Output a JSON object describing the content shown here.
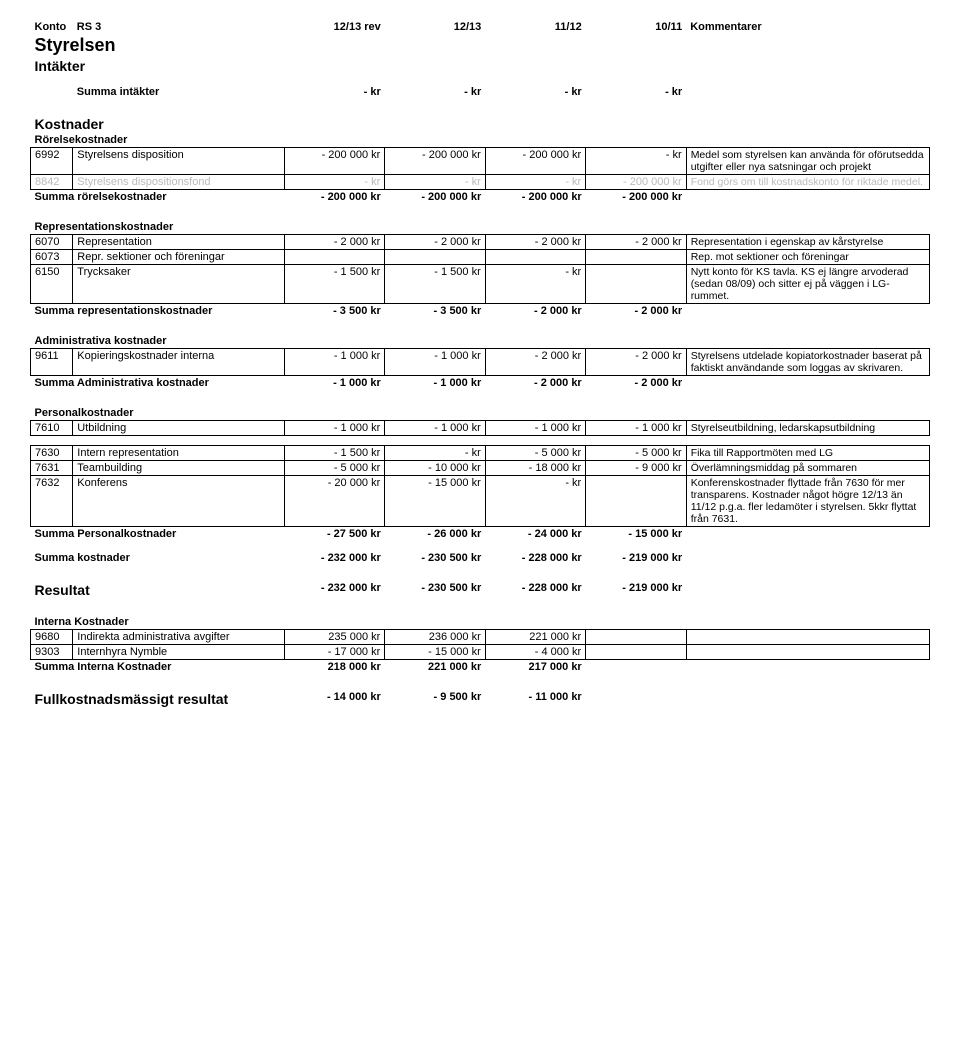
{
  "header": {
    "konto_label": "Konto",
    "section": "RS 3",
    "cols": [
      "12/13 rev",
      "12/13",
      "11/12",
      "10/11"
    ],
    "comment_label": "Kommentarer",
    "title1": "Styrelsen",
    "title2": "Intäkter"
  },
  "intakter_sum": {
    "label": "Summa intäkter",
    "vals": [
      "-       kr",
      "-       kr",
      "-       kr",
      "-       kr"
    ]
  },
  "kostnader_title": "Kostnader",
  "rorelse": {
    "title": "Rörelsekostnader",
    "rows": [
      {
        "konto": "6992",
        "desc": "Styrelsens disposition",
        "vals": [
          "-   200 000 kr",
          "-   200 000 kr",
          "-   200 000 kr",
          "-       kr"
        ],
        "comment": "Medel som styrelsen kan använda för oförutsedda utgifter eller nya satsningar och projekt",
        "grey": false
      },
      {
        "konto": "8842",
        "desc": "Styrelsens dispositionsfond",
        "vals": [
          "-       kr",
          "-       kr",
          "-       kr",
          "-   200 000 kr"
        ],
        "comment": "Fond görs om till kostnadskonto för riktade medel.",
        "grey": true
      }
    ],
    "sum": {
      "label": "Summa rörelsekostnader",
      "vals": [
        "-   200 000 kr",
        "-   200 000 kr",
        "-   200 000 kr",
        "-   200 000 kr"
      ]
    }
  },
  "repr": {
    "title": "Representationskostnader",
    "rows": [
      {
        "konto": "6070",
        "desc": "Representation",
        "vals": [
          "-     2 000 kr",
          "-     2 000 kr",
          "-     2 000 kr",
          "-     2 000 kr"
        ],
        "comment": "Representation i egenskap av kårstyrelse"
      },
      {
        "konto": "6073",
        "desc": "Repr. sektioner och föreningar",
        "vals": [
          "",
          "",
          "",
          ""
        ],
        "comment": "Rep. mot sektioner och föreningar"
      },
      {
        "konto": "6150",
        "desc": "Trycksaker",
        "vals": [
          "-     1 500 kr",
          "-     1 500 kr",
          "-       kr",
          ""
        ],
        "comment": "Nytt konto för KS tavla. KS ej längre arvoderad (sedan 08/09) och sitter ej på väggen i LG-rummet."
      }
    ],
    "sum": {
      "label": "Summa representationskostnader",
      "vals": [
        "-     3 500 kr",
        "-     3 500 kr",
        "-     2 000 kr",
        "-     2 000 kr"
      ]
    }
  },
  "admin": {
    "title": "Administrativa kostnader",
    "rows": [
      {
        "konto": "9611",
        "desc": "Kopieringskostnader interna",
        "vals": [
          "-     1 000 kr",
          "-     1 000 kr",
          "-     2 000 kr",
          "-     2 000 kr"
        ],
        "comment": "Styrelsens utdelade kopiatorkostnader baserat på faktiskt användande som loggas av skrivaren."
      }
    ],
    "sum": {
      "label": "Summa Administrativa kostnader",
      "vals": [
        "-     1 000 kr",
        "-     1 000 kr",
        "-     2 000 kr",
        "-     2 000 kr"
      ]
    }
  },
  "personal": {
    "title": "Personalkostnader",
    "rows": [
      {
        "konto": "7610",
        "desc": "Utbildning",
        "vals": [
          "-     1 000 kr",
          "-     1 000 kr",
          "-     1 000 kr",
          "-     1 000 kr"
        ],
        "comment": "Styrelseutbildning, ledarskapsutbildning"
      },
      {
        "konto": "7630",
        "desc": "Intern representation",
        "vals": [
          "-     1 500 kr",
          "-       kr",
          "-     5 000 kr",
          "-     5 000 kr"
        ],
        "comment": "Fika till Rapportmöten med LG"
      },
      {
        "konto": "7631",
        "desc": "Teambuilding",
        "vals": [
          "-     5 000 kr",
          "-    10 000 kr",
          "-    18 000 kr",
          "-     9 000 kr"
        ],
        "comment": "Överlämningsmiddag på sommaren"
      },
      {
        "konto": "7632",
        "desc": "Konferens",
        "vals": [
          "-    20 000 kr",
          "-    15 000 kr",
          "-       kr",
          ""
        ],
        "comment": "Konferenskostnader flyttade från 7630 för mer transparens. Kostnader något högre 12/13 än 11/12 p.g.a. fler ledamöter i styrelsen. 5kkr flyttat från 7631."
      }
    ],
    "sum": {
      "label": "Summa Personalkostnader",
      "vals": [
        "-    27 500 kr",
        "-    26 000 kr",
        "-    24 000 kr",
        "-    15 000 kr"
      ]
    }
  },
  "summa_kostnader": {
    "label": "Summa kostnader",
    "vals": [
      "-   232 000 kr",
      "-   230 500 kr",
      "-   228 000 kr",
      "-   219 000 kr"
    ]
  },
  "resultat": {
    "label": "Resultat",
    "vals": [
      "-   232 000 kr",
      "-   230 500 kr",
      "-   228 000 kr",
      "-   219 000 kr"
    ]
  },
  "interna": {
    "title": "Interna Kostnader",
    "rows": [
      {
        "konto": "9680",
        "desc": "Indirekta administrativa avgifter",
        "vals": [
          "235 000 kr",
          "236 000 kr",
          "221 000 kr",
          ""
        ],
        "comment": ""
      },
      {
        "konto": "9303",
        "desc": "Internhyra Nymble",
        "vals": [
          "-    17 000 kr",
          "-    15 000 kr",
          "-     4 000 kr",
          ""
        ],
        "comment": ""
      }
    ],
    "sum": {
      "label": "Summa Interna Kostnader",
      "vals": [
        "218 000 kr",
        "221 000 kr",
        "217 000 kr",
        ""
      ]
    }
  },
  "fullkost": {
    "label": "Fullkostnadsmässigt resultat",
    "vals": [
      "-    14 000 kr",
      "-     9 500 kr",
      "-    11 000 kr",
      ""
    ]
  }
}
